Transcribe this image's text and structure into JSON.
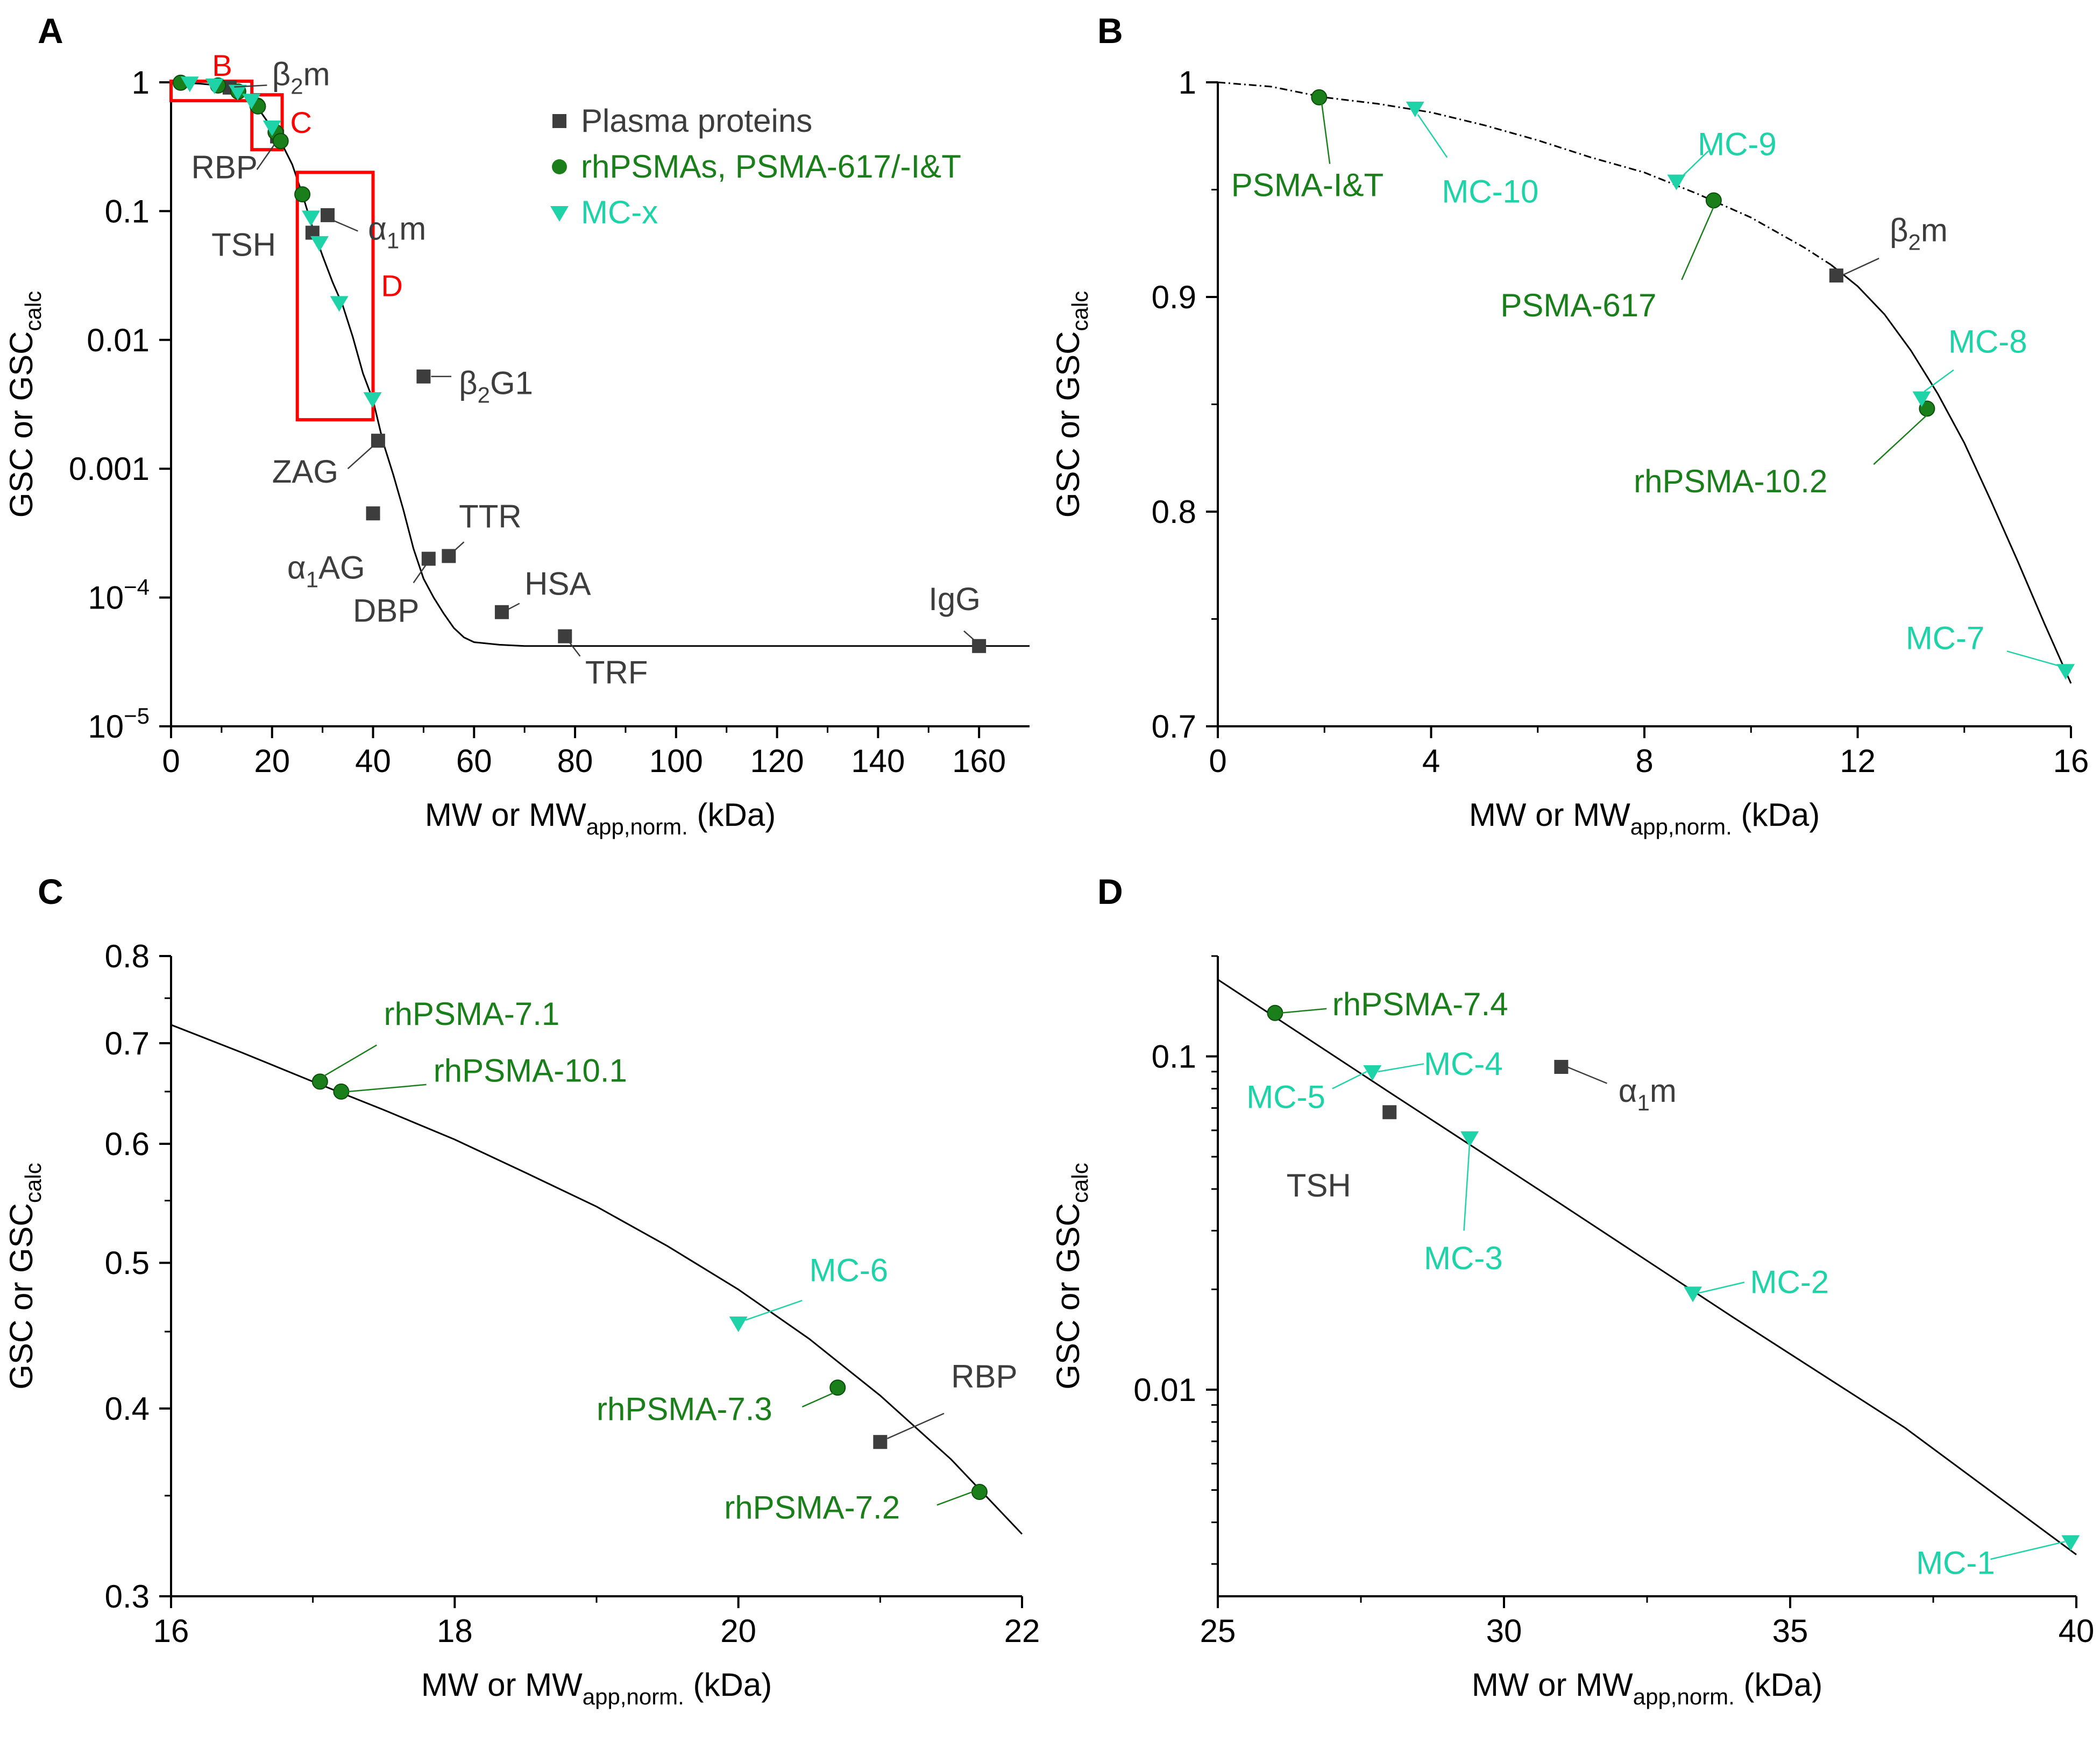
{
  "colors": {
    "plasma": "#3d3d3d",
    "rhpsma": "#1a7f1a",
    "mcx": "#1fd3a8",
    "curve": "#000000",
    "zoom_box": "#ff0000",
    "label_gray": "#3d3d3d"
  },
  "legend": {
    "items": [
      {
        "label": "Plasma proteins",
        "marker": "square"
      },
      {
        "label": "rhPSMAs, PSMA-617/-I&T",
        "marker": "circle"
      },
      {
        "label": "MC-x",
        "marker": "triangle-down"
      }
    ]
  },
  "chart_data": [
    {
      "id": "A",
      "type": "scatter",
      "yscale": "log",
      "xlim": [
        0,
        170
      ],
      "ylim": [
        1e-05,
        1
      ],
      "xticks": [
        0,
        20,
        40,
        60,
        80,
        100,
        120,
        140,
        160
      ],
      "ytick_labels": [
        "1",
        "0.1",
        "0.01",
        "0.001",
        "10^-4",
        "10^-5"
      ],
      "ytick_values": [
        1,
        0.1,
        0.01,
        0.001,
        0.0001,
        1e-05
      ],
      "xlabel": "MW or MW_app,norm. (kDa)",
      "ylabel": "GSC or GSC_calc",
      "curve": [
        [
          0,
          1
        ],
        [
          2,
          0.993
        ],
        [
          4,
          0.985
        ],
        [
          6,
          0.974
        ],
        [
          8,
          0.958
        ],
        [
          10,
          0.935
        ],
        [
          12,
          0.905
        ],
        [
          14,
          0.865
        ],
        [
          16,
          0.72
        ],
        [
          18,
          0.57
        ],
        [
          20,
          0.44
        ],
        [
          22,
          0.33
        ],
        [
          24,
          0.23
        ],
        [
          26,
          0.135
        ],
        [
          28,
          0.075
        ],
        [
          30,
          0.045
        ],
        [
          32,
          0.028
        ],
        [
          34,
          0.0185
        ],
        [
          36,
          0.0105
        ],
        [
          38,
          0.0055
        ],
        [
          40,
          0.0034
        ],
        [
          42,
          0.0016
        ],
        [
          44,
          0.0009
        ],
        [
          46,
          0.00048
        ],
        [
          48,
          0.00024
        ],
        [
          50,
          0.00014
        ],
        [
          52,
          0.0001
        ],
        [
          54,
          7.5e-05
        ],
        [
          56,
          5.8e-05
        ],
        [
          58,
          4.9e-05
        ],
        [
          60,
          4.5e-05
        ],
        [
          65,
          4.3e-05
        ],
        [
          70,
          4.2e-05
        ],
        [
          80,
          4.2e-05
        ],
        [
          100,
          4.2e-05
        ],
        [
          130,
          4.2e-05
        ],
        [
          160,
          4.2e-05
        ],
        [
          170,
          4.2e-05
        ]
      ],
      "series": [
        {
          "name": "Plasma proteins",
          "marker": "square",
          "points": [
            [
              11.6,
              0.91
            ],
            [
              21,
              0.38
            ],
            [
              28,
              0.068
            ],
            [
              31,
              0.093
            ],
            [
              50,
              0.0052
            ],
            [
              41,
              0.00165
            ],
            [
              40,
              0.00045
            ],
            [
              51,
              0.0002
            ],
            [
              55,
              0.00021
            ],
            [
              65.5,
              7.7e-05
            ],
            [
              78,
              5e-05
            ],
            [
              160,
              4.2e-05
            ]
          ]
        },
        {
          "name": "rhPSMAs, PSMA-617/-I&T",
          "marker": "circle",
          "points": [
            [
              1.9,
              0.993
            ],
            [
              9.3,
              0.945
            ],
            [
              13.3,
              0.848
            ],
            [
              17.1,
              0.66
            ],
            [
              17.2,
              0.65
            ],
            [
              20.7,
              0.41
            ],
            [
              21.7,
              0.35
            ],
            [
              26,
              0.135
            ]
          ]
        },
        {
          "name": "MC-x",
          "marker": "triangle-down",
          "points": [
            [
              3.7,
              0.988
            ],
            [
              8.6,
              0.954
            ],
            [
              13.2,
              0.853
            ],
            [
              15.9,
              0.726
            ],
            [
              20,
              0.45
            ],
            [
              27.7,
              0.09
            ],
            [
              29.4,
              0.057
            ],
            [
              33.3,
              0.0195
            ],
            [
              39.9,
              0.0035
            ]
          ]
        }
      ],
      "zoom_boxes": [
        {
          "label": "B",
          "x": [
            0,
            16
          ],
          "y": [
            0.72,
            1.02
          ]
        },
        {
          "label": "C",
          "x": [
            16,
            22
          ],
          "y": [
            0.3,
            0.8
          ]
        },
        {
          "label": "D",
          "x": [
            25,
            40
          ],
          "y": [
            0.0024,
            0.2
          ]
        }
      ],
      "annotations": [
        {
          "text": "β₂m",
          "color": "gray",
          "at": [
            11.6,
            0.91
          ]
        },
        {
          "text": "RBP",
          "color": "gray",
          "at": [
            21,
            0.38
          ]
        },
        {
          "text": "α₁m",
          "color": "gray",
          "at": [
            31,
            0.093
          ]
        },
        {
          "text": "TSH",
          "color": "gray",
          "at": [
            28,
            0.068
          ]
        },
        {
          "text": "β₂G1",
          "color": "gray",
          "at": [
            50,
            0.0052
          ]
        },
        {
          "text": "ZAG",
          "color": "gray",
          "at": [
            41,
            0.00165
          ]
        },
        {
          "text": "α₁AG",
          "color": "gray",
          "at": [
            40,
            0.00045
          ]
        },
        {
          "text": "TTR",
          "color": "gray",
          "at": [
            55,
            0.00021
          ]
        },
        {
          "text": "DBP",
          "color": "gray",
          "at": [
            51,
            0.0002
          ]
        },
        {
          "text": "HSA",
          "color": "gray",
          "at": [
            65.5,
            7.7e-05
          ]
        },
        {
          "text": "IgG",
          "color": "gray",
          "at": [
            160,
            4.2e-05
          ]
        },
        {
          "text": "TRF",
          "color": "gray",
          "at": [
            78,
            5e-05
          ]
        }
      ]
    },
    {
      "id": "B",
      "type": "scatter",
      "yscale": "linear",
      "xlim": [
        0,
        16
      ],
      "ylim": [
        0.7,
        1.0
      ],
      "xticks": [
        0,
        4,
        8,
        12,
        16
      ],
      "ytick_labels": [
        "1",
        "0.9",
        "0.8",
        "0.7"
      ],
      "ytick_values": [
        1.0,
        0.9,
        0.8,
        0.7
      ],
      "xlabel": "MW or MW_app,norm. (kDa)",
      "ylabel": "GSC or GSC_calc",
      "curve_note": "dash-dot segment below 11.5 kDa",
      "curve": [
        [
          0,
          1.0
        ],
        [
          1,
          0.998
        ],
        [
          2,
          0.993
        ],
        [
          3,
          0.99
        ],
        [
          4,
          0.986
        ],
        [
          5,
          0.98
        ],
        [
          6,
          0.973
        ],
        [
          7,
          0.965
        ],
        [
          8,
          0.958
        ],
        [
          9,
          0.948
        ],
        [
          10,
          0.937
        ],
        [
          11,
          0.923
        ],
        [
          11.5,
          0.915
        ],
        [
          12,
          0.905
        ],
        [
          12.5,
          0.892
        ],
        [
          13,
          0.875
        ],
        [
          13.5,
          0.855
        ],
        [
          14,
          0.832
        ],
        [
          14.5,
          0.805
        ],
        [
          15,
          0.777
        ],
        [
          15.5,
          0.748
        ],
        [
          16,
          0.72
        ]
      ],
      "series": [
        {
          "name": "Plasma proteins",
          "marker": "square",
          "points": [
            [
              11.6,
              0.91
            ]
          ]
        },
        {
          "name": "rhPSMAs, PSMA-617/-I&T",
          "marker": "circle",
          "points": [
            [
              1.9,
              0.993
            ],
            [
              9.3,
              0.945
            ],
            [
              13.3,
              0.848
            ]
          ]
        },
        {
          "name": "MC-x",
          "marker": "triangle-down",
          "points": [
            [
              3.7,
              0.988
            ],
            [
              8.6,
              0.954
            ],
            [
              13.2,
              0.853
            ],
            [
              15.9,
              0.726
            ]
          ]
        }
      ],
      "annotations": [
        {
          "text": "PSMA-I&T",
          "color": "rhpsma",
          "at": [
            1.9,
            0.993
          ]
        },
        {
          "text": "MC-10",
          "color": "mcx",
          "at": [
            3.7,
            0.988
          ]
        },
        {
          "text": "MC-9",
          "color": "mcx",
          "at": [
            8.6,
            0.954
          ]
        },
        {
          "text": "PSMA-617",
          "color": "rhpsma",
          "at": [
            9.3,
            0.945
          ]
        },
        {
          "text": "β₂m",
          "color": "gray",
          "at": [
            11.6,
            0.91
          ]
        },
        {
          "text": "MC-8",
          "color": "mcx",
          "at": [
            13.2,
            0.853
          ]
        },
        {
          "text": "rhPSMA-10.2",
          "color": "rhpsma",
          "at": [
            13.3,
            0.848
          ]
        },
        {
          "text": "MC-7",
          "color": "mcx",
          "at": [
            15.9,
            0.726
          ]
        }
      ]
    },
    {
      "id": "C",
      "type": "scatter",
      "yscale": "log",
      "xlim": [
        16,
        22
      ],
      "ylim": [
        0.3,
        0.8
      ],
      "xticks": [
        16,
        18,
        20,
        22
      ],
      "ytick_labels": [
        "0.8",
        "0.7",
        "0.6",
        "0.5",
        "0.4",
        "0.3"
      ],
      "ytick_values": [
        0.8,
        0.7,
        0.6,
        0.5,
        0.4,
        0.3
      ],
      "xlabel": "MW or MW_app,norm. (kDa)",
      "ylabel": "GSC or GSC_calc",
      "curve": [
        [
          16,
          0.72
        ],
        [
          16.5,
          0.69
        ],
        [
          17,
          0.66
        ],
        [
          17.5,
          0.632
        ],
        [
          18,
          0.604
        ],
        [
          18.5,
          0.574
        ],
        [
          19,
          0.545
        ],
        [
          19.5,
          0.513
        ],
        [
          20,
          0.48
        ],
        [
          20.5,
          0.445
        ],
        [
          21,
          0.408
        ],
        [
          21.5,
          0.37
        ],
        [
          22,
          0.33
        ]
      ],
      "series": [
        {
          "name": "Plasma proteins",
          "marker": "square",
          "points": [
            [
              21,
              0.38
            ]
          ]
        },
        {
          "name": "rhPSMAs, PSMA-617/-I&T",
          "marker": "circle",
          "points": [
            [
              17.05,
              0.66
            ],
            [
              17.2,
              0.65
            ],
            [
              20.7,
              0.413
            ],
            [
              21.7,
              0.352
            ]
          ]
        },
        {
          "name": "MC-x",
          "marker": "triangle-down",
          "points": [
            [
              20.0,
              0.456
            ]
          ]
        }
      ],
      "annotations": [
        {
          "text": "rhPSMA-7.1",
          "color": "rhpsma",
          "at": [
            17.05,
            0.66
          ]
        },
        {
          "text": "rhPSMA-10.1",
          "color": "rhpsma",
          "at": [
            17.2,
            0.65
          ]
        },
        {
          "text": "MC-6",
          "color": "mcx",
          "at": [
            20.0,
            0.456
          ]
        },
        {
          "text": "rhPSMA-7.3",
          "color": "rhpsma",
          "at": [
            20.7,
            0.413
          ]
        },
        {
          "text": "RBP",
          "color": "gray",
          "at": [
            21,
            0.38
          ]
        },
        {
          "text": "rhPSMA-7.2",
          "color": "rhpsma",
          "at": [
            21.7,
            0.352
          ]
        }
      ]
    },
    {
      "id": "D",
      "type": "scatter",
      "yscale": "log",
      "xlim": [
        25,
        40
      ],
      "ylim": [
        0.0024,
        0.2
      ],
      "xticks": [
        25,
        30,
        35,
        40
      ],
      "ytick_labels": [
        "0.1",
        "0.01"
      ],
      "ytick_values": [
        0.1,
        0.01
      ],
      "xlabel": "MW or MW_app,norm. (kDa)",
      "ylabel": "GSC or GSC_calc",
      "curve": [
        [
          25,
          0.17
        ],
        [
          28,
          0.078
        ],
        [
          31,
          0.036
        ],
        [
          34,
          0.0165
        ],
        [
          37,
          0.0077
        ],
        [
          40,
          0.0032
        ]
      ],
      "series": [
        {
          "name": "Plasma proteins",
          "marker": "square",
          "points": [
            [
              28,
              0.068
            ],
            [
              31,
              0.093
            ]
          ]
        },
        {
          "name": "rhPSMAs, PSMA-617/-I&T",
          "marker": "circle",
          "points": [
            [
              26,
              0.135
            ]
          ]
        },
        {
          "name": "MC-x",
          "marker": "triangle-down",
          "points": [
            [
              27.7,
              0.09
            ],
            [
              29.4,
              0.057
            ],
            [
              33.3,
              0.0195
            ],
            [
              39.9,
              0.0035
            ]
          ]
        }
      ],
      "annotations": [
        {
          "text": "rhPSMA-7.4",
          "color": "rhpsma",
          "at": [
            26,
            0.135
          ]
        },
        {
          "text": "MC-4",
          "color": "mcx",
          "at": [
            27.7,
            0.09
          ]
        },
        {
          "text": "MC-5",
          "color": "mcx",
          "at": [
            27.7,
            0.09
          ]
        },
        {
          "text": "α₁m",
          "color": "gray",
          "at": [
            31,
            0.093
          ]
        },
        {
          "text": "TSH",
          "color": "gray",
          "at": [
            28,
            0.068
          ]
        },
        {
          "text": "MC-3",
          "color": "mcx",
          "at": [
            29.4,
            0.057
          ]
        },
        {
          "text": "MC-2",
          "color": "mcx",
          "at": [
            33.3,
            0.0195
          ]
        },
        {
          "text": "MC-1",
          "color": "mcx",
          "at": [
            39.9,
            0.0035
          ]
        }
      ]
    }
  ]
}
